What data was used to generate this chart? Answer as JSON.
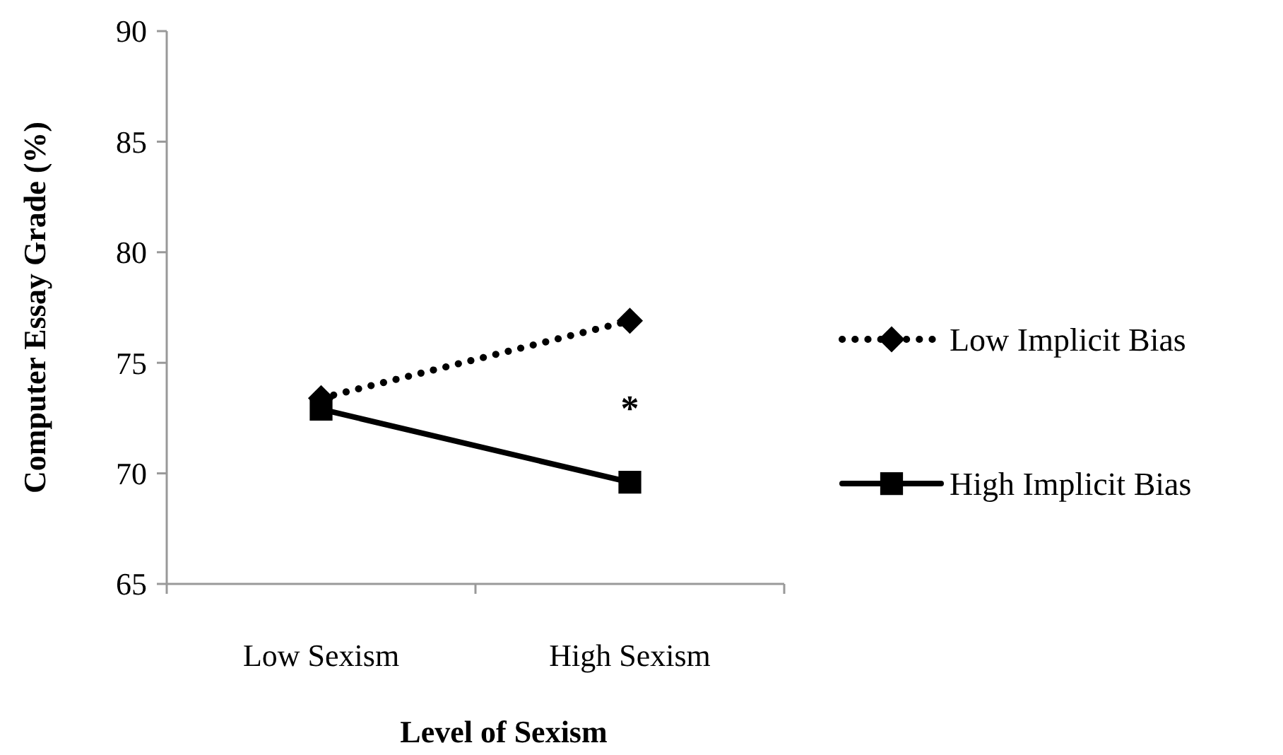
{
  "chart_data": {
    "type": "line",
    "categories": [
      "Low Sexism",
      "High Sexism"
    ],
    "series": [
      {
        "name": "Low Implicit Bias",
        "color": "#000000",
        "values": [
          73.4,
          76.9
        ],
        "marker": "diamond",
        "line_style": "dotted"
      },
      {
        "name": "High Implicit Bias",
        "color": "#000000",
        "values": [
          72.9,
          69.6
        ],
        "marker": "square",
        "line_style": "solid"
      }
    ],
    "xlabel": "Level of Sexism",
    "ylabel": "Computer Essay Grade (%)",
    "ylim": [
      65,
      90
    ],
    "yticks": [
      65,
      70,
      75,
      80,
      85,
      90
    ],
    "grid": false,
    "legend": "right",
    "annotations": [
      "*"
    ]
  }
}
